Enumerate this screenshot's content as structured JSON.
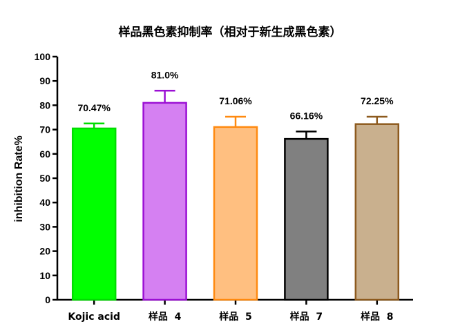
{
  "chart_data": {
    "type": "bar",
    "title": "样品黑色素抑制率（相对于新生成黑色素）",
    "xlabel": "",
    "ylabel": "inhibition Rate%",
    "ylim": [
      0,
      100
    ],
    "yticks": [
      0,
      10,
      20,
      30,
      40,
      50,
      60,
      70,
      80,
      90,
      100
    ],
    "categories": [
      "Kojic acid",
      "样品  4",
      "样品  5",
      "样品  7",
      "样品  8"
    ],
    "values": [
      70.47,
      81.0,
      71.06,
      66.16,
      72.25
    ],
    "error_upper": [
      72.5,
      86.0,
      75.3,
      69.2,
      75.3
    ],
    "data_labels": [
      "70.47%",
      "81.0%",
      "71.06%",
      "66.16%",
      "72.25%"
    ],
    "fill_colors": [
      "#00ff00",
      "#d580f2",
      "#ffbf80",
      "#808080",
      "#c9b08e"
    ],
    "edge_colors": [
      "#00dd00",
      "#9b10d4",
      "#ff8a10",
      "#000000",
      "#8d5a1e"
    ],
    "grid": false,
    "legend": "none"
  }
}
